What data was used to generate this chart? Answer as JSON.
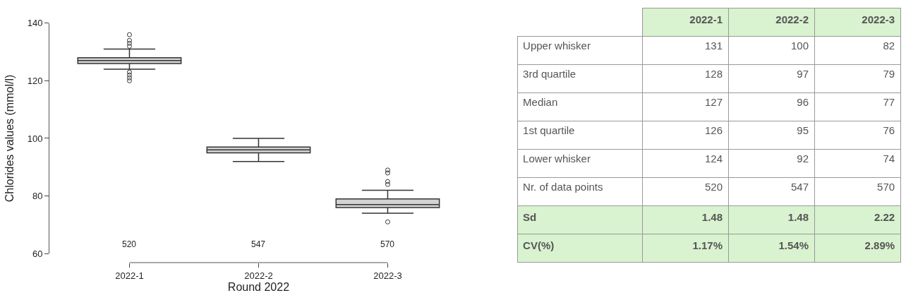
{
  "chart_data": [
    {
      "type": "box",
      "xlabel": "Round 2022",
      "ylabel": "Chlorides values (mmol/l)",
      "categories": [
        "2022-1",
        "2022-2",
        "2022-3"
      ],
      "boxes": [
        {
          "low": 124,
          "q1": 126,
          "median": 127,
          "q3": 128,
          "high": 131,
          "outliers": [
            132,
            133,
            134,
            136,
            120,
            121,
            122,
            123
          ]
        },
        {
          "low": 92,
          "q1": 95,
          "median": 96,
          "q3": 97,
          "high": 100
        },
        {
          "low": 74,
          "q1": 76,
          "median": 77,
          "q3": 79,
          "high": 82,
          "outliers": [
            84,
            85,
            88,
            89,
            71
          ]
        }
      ],
      "annotations": [
        "520",
        "547",
        "570"
      ],
      "ylim": [
        60,
        140
      ],
      "yticks": [
        60,
        80,
        100,
        120,
        140
      ],
      "marker": "circle"
    },
    {
      "type": "other",
      "categories": [
        "2022-1",
        "2022-2",
        "2022-3"
      ],
      "y_categories": [
        "Upper whisker",
        "3rd quartile",
        "Median",
        "1st quartile",
        "Lower whisker",
        "Nr. of data points",
        "Sd",
        "CV(%)"
      ],
      "cell_labels": [
        [
          "131",
          "100",
          "82"
        ],
        [
          "128",
          "97",
          "79"
        ],
        [
          "127",
          "96",
          "77"
        ],
        [
          "126",
          "95",
          "76"
        ],
        [
          "124",
          "92",
          "74"
        ],
        [
          "520",
          "547",
          "570"
        ],
        [
          "1.48",
          "1.48",
          "2.22"
        ],
        [
          "1.17%",
          "1.54%",
          "2.89%"
        ]
      ]
    }
  ]
}
